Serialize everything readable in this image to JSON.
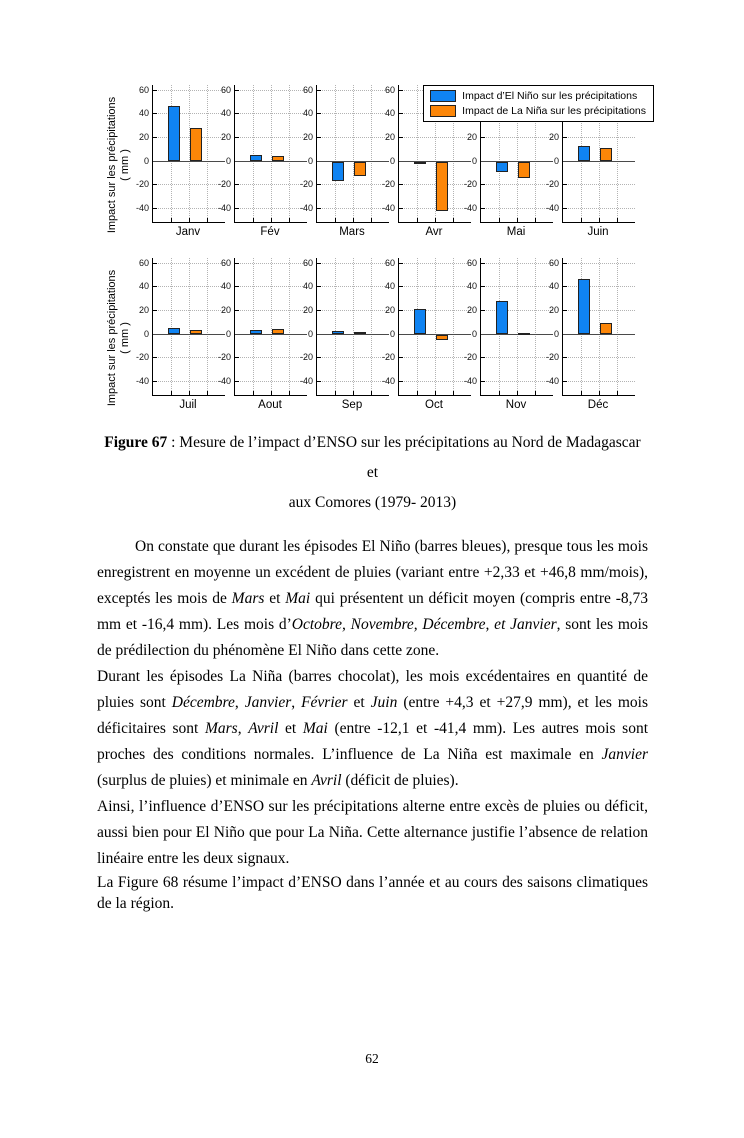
{
  "page": {
    "number": "62"
  },
  "figure_caption": {
    "label": "Figure 67",
    "line1_rest": " : Mesure de l’impact d’ENSO sur les précipitations au Nord de Madagascar et",
    "line2": "aux Comores (1979- 2013)"
  },
  "chart_data": {
    "type": "bar",
    "title": "",
    "ylabel_line1": "Impact sur les précipitations",
    "ylabel_line2": "( mm )",
    "ylim": [
      -52,
      64
    ],
    "ytick_values": [
      60,
      40,
      20,
      0,
      -20,
      -40
    ],
    "ytick_labels": [
      "60",
      "40",
      "20",
      "0",
      "-20",
      "-40"
    ],
    "grid": "dotted",
    "legend_position": "top-right",
    "series_colors": {
      "el_nino": "#0F83F2",
      "la_nina": "#FC8608"
    },
    "legend": [
      {
        "label": "Impact d’El Niño sur les précipitations",
        "series": "el_nino"
      },
      {
        "label": "Impact de La Niña sur les précipitations",
        "series": "la_nina"
      }
    ],
    "rows": [
      {
        "categories": [
          "Janv",
          "Fév",
          "Mars",
          "Avr",
          "Mai",
          "Juin"
        ],
        "series": [
          {
            "name": "el_nino",
            "values": [
              46.8,
              5.5,
              -16.4,
              -1.0,
              -8.73,
              13.0
            ]
          },
          {
            "name": "la_nina",
            "values": [
              27.9,
              4.3,
              -12.1,
              -41.4,
              -13.5,
              11.0
            ]
          }
        ]
      },
      {
        "categories": [
          "Juil",
          "Aout",
          "Sep",
          "Oct",
          "Nov",
          "Déc"
        ],
        "series": [
          {
            "name": "el_nino",
            "values": [
              5.0,
              3.0,
              2.33,
              21.0,
              28.0,
              46.8
            ]
          },
          {
            "name": "la_nina",
            "values": [
              3.5,
              4.0,
              2.0,
              -4.0,
              0.5,
              9.0
            ]
          }
        ]
      }
    ]
  },
  "paragraphs": [
    {
      "indent": true,
      "tight": false,
      "segments": [
        {
          "italic": false,
          "text": "On constate que durant les épisodes El Niño (barres bleues), presque tous les mois enregistrent en moyenne un excédent de pluies (variant entre +2,33 et +46,8 mm/mois), exceptés les mois de "
        },
        {
          "italic": true,
          "text": "Mars"
        },
        {
          "italic": false,
          "text": " et "
        },
        {
          "italic": true,
          "text": "Mai"
        },
        {
          "italic": false,
          "text": " qui présentent un déficit moyen (compris entre -8,73 mm et -16,4 mm). Les mois d’"
        },
        {
          "italic": true,
          "text": "Octobre, Novembre, Décembre, et Janvier"
        },
        {
          "italic": false,
          "text": ", sont les mois de prédilection du phénomène El Niño dans cette zone."
        }
      ]
    },
    {
      "indent": false,
      "tight": false,
      "segments": [
        {
          "italic": false,
          "text": "Durant les épisodes La Niña (barres chocolat), les mois excédentaires en quantité de pluies sont "
        },
        {
          "italic": true,
          "text": "Décembre"
        },
        {
          "italic": false,
          "text": ", "
        },
        {
          "italic": true,
          "text": "Janvier"
        },
        {
          "italic": false,
          "text": ", "
        },
        {
          "italic": true,
          "text": "Février"
        },
        {
          "italic": false,
          "text": " et "
        },
        {
          "italic": true,
          "text": "Juin"
        },
        {
          "italic": false,
          "text": " (entre +4,3 et +27,9 mm), et les mois déficitaires sont "
        },
        {
          "italic": true,
          "text": "Mars"
        },
        {
          "italic": false,
          "text": ", "
        },
        {
          "italic": true,
          "text": "Avril"
        },
        {
          "italic": false,
          "text": " et "
        },
        {
          "italic": true,
          "text": "Mai"
        },
        {
          "italic": false,
          "text": " (entre -12,1 et -41,4 mm). Les autres mois sont proches des conditions normales. L’influence de La Niña est maximale en "
        },
        {
          "italic": true,
          "text": "Janvier"
        },
        {
          "italic": false,
          "text": " (surplus de pluies) et minimale en "
        },
        {
          "italic": true,
          "text": "Avril"
        },
        {
          "italic": false,
          "text": " (déficit de pluies)."
        }
      ]
    },
    {
      "indent": false,
      "tight": false,
      "segments": [
        {
          "italic": false,
          "text": "Ainsi, l’influence d’ENSO sur les précipitations alterne entre excès de pluies ou déficit, aussi bien pour El Niño que pour La Niña. Cette alternance justifie l’absence de relation linéaire entre les deux signaux."
        }
      ]
    },
    {
      "indent": false,
      "tight": true,
      "segments": [
        {
          "italic": false,
          "text": "La Figure 68 résume l’impact d’ENSO dans l’année et au cours des saisons climatiques de la région."
        }
      ]
    }
  ]
}
